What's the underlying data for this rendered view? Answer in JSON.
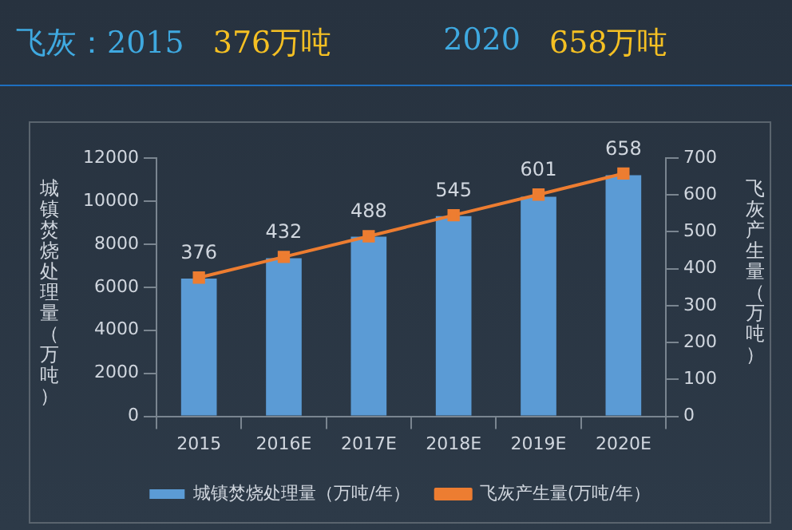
{
  "chart_data": {
    "type": "bar",
    "annotations": [
      "飞灰：2015",
      "376万吨",
      "2020",
      "658万吨"
    ],
    "ylabel": "城镇焚烧处理量（万吨）",
    "y2label": "飞灰产生量（万吨）",
    "categories": [
      "2015",
      "2016E",
      "2017E",
      "2018E",
      "2019E",
      "2020E"
    ],
    "series": [
      {
        "name": "城镇焚烧处理量（万吨/年）",
        "color": "#5b9bd5",
        "values": [
          6400,
          7350,
          8350,
          9300,
          10200,
          11200
        ]
      },
      {
        "name": "飞灰产生量(万吨/年）",
        "type": "line",
        "axis": "y2",
        "color": "#ed7d31",
        "marker": "square",
        "values": [
          376,
          432,
          488,
          545,
          601,
          658
        ],
        "value_labels": [
          "376",
          "432",
          "488",
          "545",
          "601",
          "658"
        ]
      }
    ],
    "ylim": [
      0,
      12000
    ],
    "yticks": [
      0,
      2000,
      4000,
      6000,
      8000,
      10000,
      12000
    ],
    "y2lim": [
      0,
      700
    ],
    "y2ticks": [
      0,
      100,
      200,
      300,
      400,
      500,
      600,
      700
    ],
    "grid": false,
    "legend": "bottom"
  }
}
